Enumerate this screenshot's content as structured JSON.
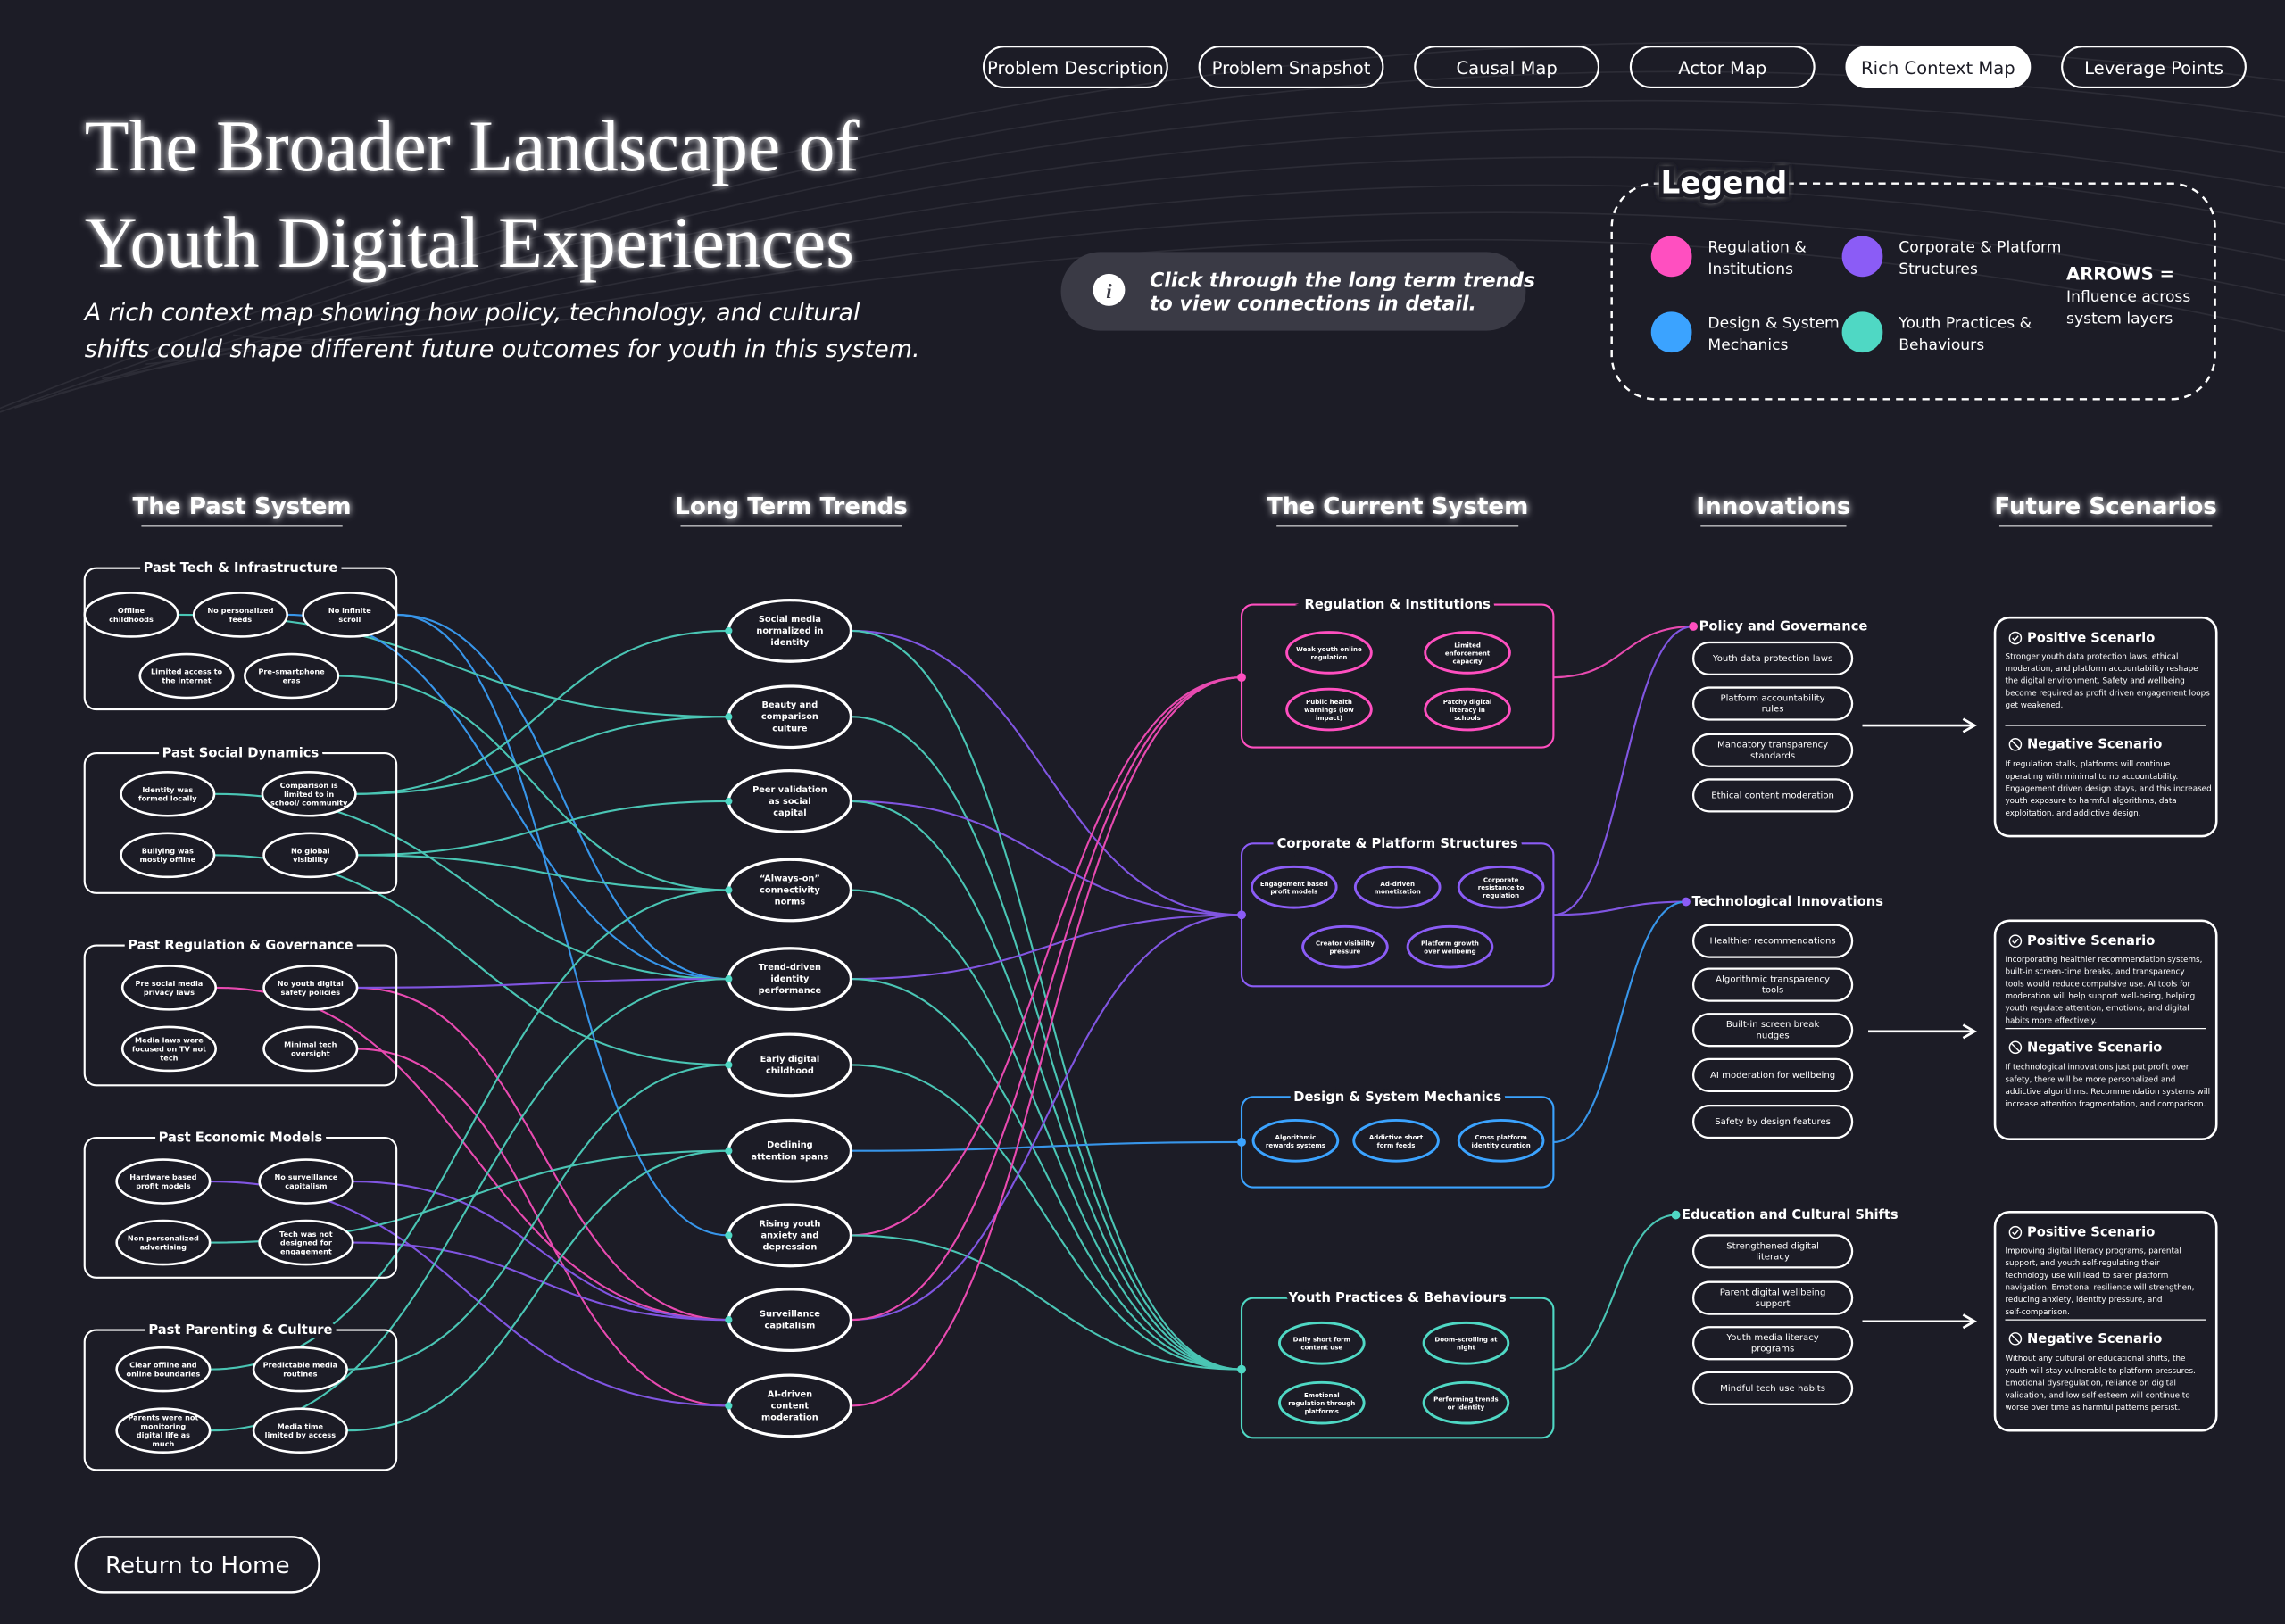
{
  "nav": {
    "buttons": [
      "Problem Description",
      "Problem Snapshot",
      "Causal Map",
      "Actor Map",
      "Rich Context Map",
      "Leverage Points"
    ]
  },
  "header": {
    "title_lines": [
      "The Broader Landscape of",
      "Youth Digital Experiences"
    ],
    "subtitle_lines": [
      "A rich context map showing how policy, technology, and cultural",
      "shifts could shape different future outcomes for youth in this system."
    ]
  },
  "hint": {
    "lines": [
      "Click through the long term trends",
      "to view connections in detail."
    ]
  },
  "legend": {
    "title": "Legend",
    "items": [
      {
        "label_lines": [
          "Regulation &",
          "Institutions"
        ],
        "color": "#ff4fc0"
      },
      {
        "label_lines": [
          "Corporate & Platform",
          "Structures"
        ],
        "color": "#8b5cf6"
      },
      {
        "label_lines": [
          "Design & System",
          "Mechanics"
        ],
        "color": "#3ba3ff"
      },
      {
        "label_lines": [
          "Youth Practices &",
          "Behaviours"
        ],
        "color": "#4fd8c4"
      }
    ],
    "arrows_title": "ARROWS =",
    "arrows_lines": [
      "Influence across",
      "system layers"
    ]
  },
  "columns": [
    "The Past System",
    "Long Term Trends",
    "The Current System",
    "Innovations",
    "Future Scenarios"
  ],
  "past_system": [
    {
      "title": "Past Tech & Infrastructure",
      "nodes": [
        "Offline childhoods",
        "No personalized feeds",
        "No infinite scroll",
        "Limited access to the internet",
        "Pre-smartphone eras"
      ]
    },
    {
      "title": "Past Social Dynamics",
      "nodes": [
        "Identity was formed locally",
        "Comparison is limited to in school/ community",
        "Bullying was mostly offline",
        "No global visibility"
      ]
    },
    {
      "title": "Past Regulation & Governance",
      "nodes": [
        "Pre social media privacy laws",
        "No youth digital safety policies",
        "Media laws were focused on TV not tech",
        "Minimal tech oversight"
      ]
    },
    {
      "title": "Past Economic Models",
      "nodes": [
        "Hardware based profit models",
        "No surveillance capitalism",
        "Non personalized advertising",
        "Tech was not designed for engagement"
      ]
    },
    {
      "title": "Past Parenting & Culture",
      "nodes": [
        "Clear offline and online boundaries",
        "Predictable media routines",
        "Parents were not monitoring digital life as much",
        "Media time limited by access"
      ]
    }
  ],
  "trends": [
    "Social media normalized in identity",
    "Beauty and comparison culture",
    "Peer validation as social capital",
    "“Always-on” connectivity norms",
    "Trend-driven identity performance",
    "Early digital childhood",
    "Declining attention spans",
    "Rising youth anxiety and depression",
    "Surveillance capitalism",
    "AI-driven content moderation"
  ],
  "current_system": [
    {
      "title": "Regulation & Institutions",
      "color": "#ff4fc0",
      "nodes": [
        "Weak youth online regulation",
        "Limited enforcement capacity",
        "Public health warnings (low impact)",
        "Patchy digital literacy in schools"
      ]
    },
    {
      "title": "Corporate & Platform Structures",
      "color": "#8b5cf6",
      "nodes": [
        "Engagement based profit models",
        "Ad-driven monetization",
        "Corporate resistance to regulation",
        "Creator visibility pressure",
        "Platform growth over wellbeing"
      ]
    },
    {
      "title": "Design & System Mechanics",
      "color": "#3ba3ff",
      "nodes": [
        "Algorithmic rewards systems",
        "Addictive short form feeds",
        "Cross platform identity curation"
      ]
    },
    {
      "title": "Youth Practices & Behaviours",
      "color": "#4fd8c4",
      "nodes": [
        "Daily short form content use",
        "Doom-scrolling at night",
        "Emotional regulation through platforms",
        "Performing trends or identity"
      ]
    }
  ],
  "innovations": [
    {
      "title": "Policy and Governance",
      "items": [
        "Youth data protection laws",
        "Platform accountability rules",
        "Mandatory transparency standards",
        "Ethical content moderation"
      ]
    },
    {
      "title": "Technological Innovations",
      "items": [
        "Healthier recommendations",
        "Algorithmic transparency tools",
        "Built-in screen break nudges",
        "AI moderation for wellbeing",
        "Safety by design features"
      ]
    },
    {
      "title": "Education and Cultural Shifts",
      "items": [
        "Strengthened digital literacy",
        "Parent digital wellbeing support",
        "Youth media literacy programs",
        "Mindful tech use habits"
      ]
    }
  ],
  "scenarios": [
    {
      "positive_title": "Positive Scenario",
      "positive_text": "Stronger youth data protection laws, ethical moderation, and platform accountability reshape the digital environment. Safety and wellbeing become required as profit driven engagement loops get weakened.",
      "negative_title": "Negative Scenario",
      "negative_text": "If regulation stalls, platforms will continue operating with minimal to no accountability. Engagement driven design stays, and this increased youth exposure to harmful algorithms, data exploitation, and addictive design."
    },
    {
      "positive_title": "Positive Scenario",
      "positive_text": "Incorporating healthier recommendation systems, built-in screen-time breaks, and transparency tools would reduce compulsive use. AI tools for moderation will help support well-being, helping youth regulate attention, emotions, and digital habits more effectively.",
      "negative_title": "Negative Scenario",
      "negative_text": "If technological innovations just put profit over safety, there will be more personalized and addictive algorithms. Recommendation systems will increase attention fragmentation, and comparison."
    },
    {
      "positive_title": "Positive Scenario",
      "positive_text": "Improving digital literacy programs, parental support, and youth self-regulating their technology use will lead to safer platform navigation. Emotional resilience will strengthen, reducing anxiety, identity pressure, and self-comparison.",
      "negative_title": "Negative Scenario",
      "negative_text": "Without any cultural or educational shifts, the youth will stay vulnerable to platform pressures. Emotional dysregulation, reliance on digital validation, and low self-esteem will continue to worse over time as harmful patterns persist."
    }
  ],
  "return_button": "Return to Home"
}
